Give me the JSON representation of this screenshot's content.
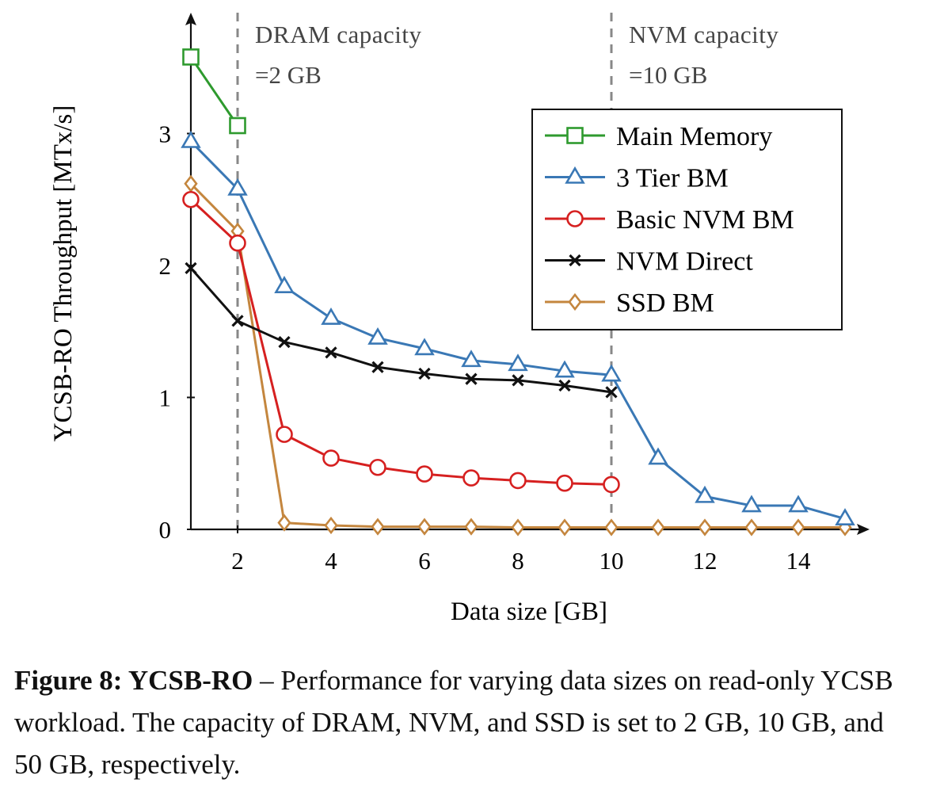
{
  "chart_data": {
    "type": "line",
    "ylabel": "YCSB-RO Throughput [MTx/s]",
    "xlabel": "Data size [GB]",
    "xlim": [
      1,
      15
    ],
    "ylim": [
      0,
      3.6
    ],
    "xticks": [
      2,
      4,
      6,
      8,
      10,
      12,
      14
    ],
    "yticks": [
      0,
      1,
      2,
      3
    ],
    "grid": false,
    "legend_position": "top-right",
    "reference_lines": [
      {
        "x": 2,
        "label_line1": "DRAM capacity",
        "label_line2": "=2 GB"
      },
      {
        "x": 10,
        "label_line1": "NVM capacity",
        "label_line2": "=10 GB"
      }
    ],
    "series": [
      {
        "name": "Main Memory",
        "color": "#2e9a2e",
        "marker": "square",
        "x": [
          1,
          2
        ],
        "y": [
          3.58,
          3.06
        ]
      },
      {
        "name": "3 Tier BM",
        "color": "#3a78b5",
        "marker": "triangle",
        "x": [
          1,
          2,
          3,
          4,
          5,
          6,
          7,
          8,
          9,
          10,
          11,
          12,
          13,
          14,
          15
        ],
        "y": [
          2.94,
          2.58,
          1.84,
          1.6,
          1.45,
          1.37,
          1.28,
          1.25,
          1.2,
          1.17,
          0.54,
          0.25,
          0.18,
          0.18,
          0.08
        ]
      },
      {
        "name": "Basic NVM BM",
        "color": "#d62020",
        "marker": "circle",
        "x": [
          1,
          2,
          3,
          4,
          5,
          6,
          7,
          8,
          9,
          10
        ],
        "y": [
          2.5,
          2.17,
          0.72,
          0.54,
          0.47,
          0.42,
          0.39,
          0.37,
          0.35,
          0.34
        ]
      },
      {
        "name": "NVM Direct",
        "color": "#111111",
        "marker": "cross",
        "x": [
          1,
          2,
          3,
          4,
          5,
          6,
          7,
          8,
          9,
          10
        ],
        "y": [
          1.98,
          1.58,
          1.42,
          1.34,
          1.23,
          1.18,
          1.14,
          1.13,
          1.09,
          1.04
        ]
      },
      {
        "name": "SSD BM",
        "color": "#c4863e",
        "marker": "diamond",
        "x": [
          1,
          2,
          3,
          4,
          5,
          6,
          7,
          8,
          9,
          10,
          11,
          12,
          13,
          14,
          15
        ],
        "y": [
          2.62,
          2.26,
          0.05,
          0.03,
          0.02,
          0.02,
          0.02,
          0.015,
          0.015,
          0.015,
          0.015,
          0.015,
          0.015,
          0.015,
          0.015
        ]
      }
    ]
  },
  "caption": {
    "lead": "Figure 8: YCSB-RO",
    "text": " – Performance for varying data sizes on read-only YCSB workload. The capacity of DRAM, NVM, and SSD is set to 2 GB, 10 GB, and 50 GB, respectively."
  }
}
